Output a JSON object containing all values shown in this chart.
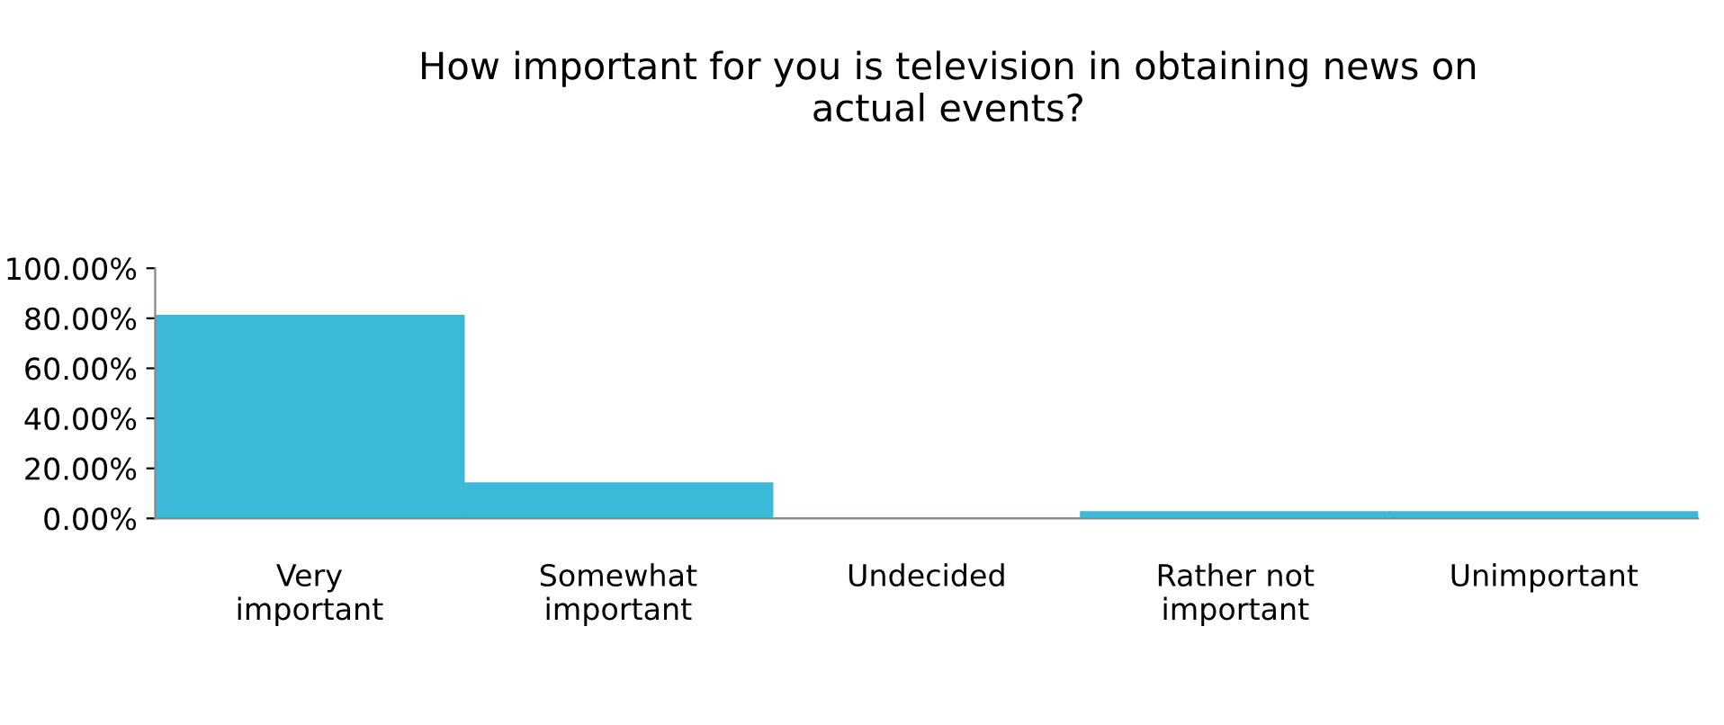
{
  "chart_data": {
    "type": "bar",
    "title": "How important for you is television in obtaining news on\nactual events?",
    "categories": [
      "Very\nimportant",
      "Somewhat\nimportant",
      "Undecided",
      "Rather not\nimportant",
      "Unimportant"
    ],
    "values": [
      81,
      14,
      0,
      2.5,
      2.5
    ],
    "color": "#3cb8d8",
    "ylim": [
      0,
      100
    ],
    "yticks": [
      {
        "value": 0,
        "label": "0.00%"
      },
      {
        "value": 20,
        "label": "20.00%"
      },
      {
        "value": 40,
        "label": "40.00%"
      },
      {
        "value": 60,
        "label": "60.00%"
      },
      {
        "value": 80,
        "label": "80.00%"
      },
      {
        "value": 100,
        "label": "100.00%"
      }
    ],
    "grid": false,
    "legend": false
  }
}
